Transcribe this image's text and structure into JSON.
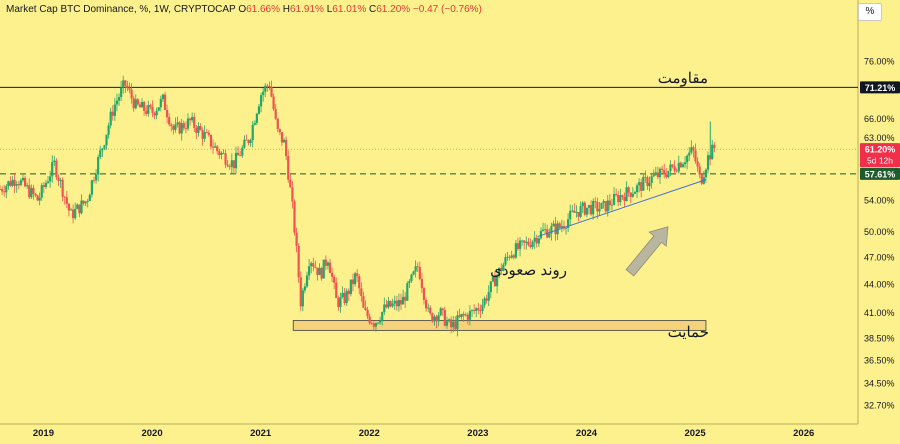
{
  "header": {
    "title": "Market Cap BTC Dominance, %, 1W, CRYPTOCAP",
    "o_label": "O",
    "o_value": "61.66%",
    "h_label": "H",
    "h_value": "61.91%",
    "l_label": "L",
    "l_value": "61.01%",
    "c_label": "C",
    "c_value": "61.20%",
    "change": "−0.47 (−0.76%)"
  },
  "percent_button": "%",
  "colors": {
    "background": "#fdf18e",
    "up": "#22a86a",
    "down": "#ef5350",
    "price_badge": "#f0304a",
    "dashed_badge": "#1e5b2d",
    "resistance_badge": "#131722"
  },
  "chart_data": {
    "type": "candlestick",
    "scale": "log",
    "x_ticks": [
      "2019",
      "2020",
      "2021",
      "2022",
      "2023",
      "2024",
      "2025",
      "2026"
    ],
    "y_ticks": [
      "76.00%",
      "66.00%",
      "63.00%",
      "58.00%",
      "54.00%",
      "50.00%",
      "47.00%",
      "44.00%",
      "41.00%",
      "38.50%",
      "36.50%",
      "34.50%",
      "32.70%"
    ],
    "y_tick_values": [
      76,
      66,
      63,
      58,
      54,
      50,
      47,
      44,
      41,
      38.5,
      36.5,
      34.5,
      32.7
    ],
    "x_range": [
      2018.6,
      2026.5
    ],
    "y_range": [
      31.2,
      84
    ],
    "series_path": [
      [
        2018.6,
        55.5
      ],
      [
        2018.75,
        57
      ],
      [
        2018.95,
        54
      ],
      [
        2019.1,
        59
      ],
      [
        2019.25,
        52
      ],
      [
        2019.4,
        54
      ],
      [
        2019.55,
        62
      ],
      [
        2019.65,
        68
      ],
      [
        2019.75,
        71.8
      ],
      [
        2019.85,
        68
      ],
      [
        2020.0,
        67
      ],
      [
        2020.1,
        69
      ],
      [
        2020.2,
        64
      ],
      [
        2020.35,
        65.5
      ],
      [
        2020.5,
        63
      ],
      [
        2020.6,
        61
      ],
      [
        2020.75,
        59
      ],
      [
        2020.9,
        63
      ],
      [
        2021.0,
        70
      ],
      [
        2021.08,
        72
      ],
      [
        2021.15,
        64
      ],
      [
        2021.22,
        62
      ],
      [
        2021.3,
        52
      ],
      [
        2021.37,
        42
      ],
      [
        2021.45,
        47
      ],
      [
        2021.55,
        45
      ],
      [
        2021.62,
        47
      ],
      [
        2021.7,
        42
      ],
      [
        2021.78,
        42.5
      ],
      [
        2021.88,
        45
      ],
      [
        2021.95,
        41
      ],
      [
        2022.05,
        40
      ],
      [
        2022.15,
        41.5
      ],
      [
        2022.3,
        42
      ],
      [
        2022.45,
        46
      ],
      [
        2022.55,
        40.5
      ],
      [
        2022.65,
        41
      ],
      [
        2022.75,
        39.5
      ],
      [
        2022.85,
        40.5
      ],
      [
        2022.95,
        41
      ],
      [
        2023.05,
        42
      ],
      [
        2023.18,
        45
      ],
      [
        2023.3,
        47.5
      ],
      [
        2023.45,
        48.5
      ],
      [
        2023.6,
        50
      ],
      [
        2023.75,
        50.5
      ],
      [
        2023.9,
        52.5
      ],
      [
        2024.0,
        53
      ],
      [
        2024.15,
        53
      ],
      [
        2024.3,
        54.5
      ],
      [
        2024.45,
        55.5
      ],
      [
        2024.6,
        57
      ],
      [
        2024.75,
        58
      ],
      [
        2024.88,
        59.5
      ],
      [
        2024.98,
        61
      ],
      [
        2025.05,
        56.5
      ],
      [
        2025.12,
        60
      ],
      [
        2025.18,
        61.5
      ]
    ],
    "last_close": 61.2,
    "horizontal_lines": [
      {
        "value": 71.21,
        "style": "solid",
        "label": "71.21%"
      },
      {
        "value": 57.61,
        "style": "dashed",
        "label": "57.61%"
      },
      {
        "value": 61.2,
        "style": "dotted",
        "label": "61.20%"
      }
    ],
    "price_countdown": "5d 12h",
    "support_zone": {
      "x_start": 2021.3,
      "x_end": 2025.1,
      "y_low": 39.25,
      "y_high": 40.2
    },
    "trend_line": {
      "x1": 2023.55,
      "y1": 49.4,
      "x2": 2025.1,
      "y2": 56.8
    },
    "trend_arrow": {
      "x1": 2024.4,
      "y1": 45.2,
      "x2": 2024.75,
      "y2": 50.6
    },
    "annotations": {
      "resistance": "مقاومت",
      "support": "حمایت",
      "uptrend": "روند صعودی"
    }
  }
}
